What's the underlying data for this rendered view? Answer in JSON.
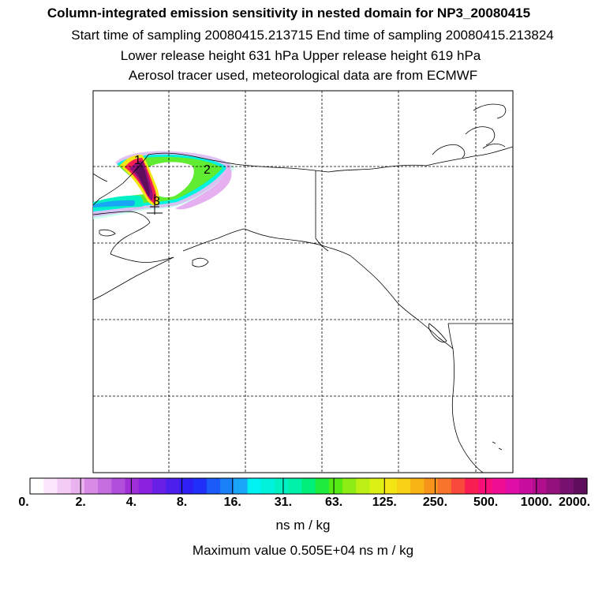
{
  "header": {
    "title": "Column-integrated emission sensitivity in nested domain for NP3_20080415",
    "line2": "Start time of sampling 20080415.213715     End time of sampling 20080415.213824",
    "line3": "Lower release height  631 hPa        Upper release height  619 hPa",
    "line4": "Aerosol tracer used, meteorological data are from ECMWF"
  },
  "map": {
    "trajectory_labels": [
      "1",
      "2",
      "3"
    ]
  },
  "colorbar": {
    "labels": [
      "0.",
      "2.",
      "4.",
      "8.",
      "16.",
      "31.",
      "63.",
      "125.",
      "250.",
      "500.",
      "1000.",
      "2000."
    ],
    "units": "ns m / kg",
    "colors": [
      "#ffffff",
      "#fbe6fb",
      "#f3ccf5",
      "#eab3f0",
      "#d78ae6",
      "#c56ee0",
      "#b24edc",
      "#9f2fd9",
      "#8a22e0",
      "#6a1fe6",
      "#4c1fed",
      "#2f1ff5",
      "#2030f8",
      "#1a5af8",
      "#1a80f8",
      "#1aa6f6",
      "#00f2f2",
      "#00f2dd",
      "#00f2c4",
      "#00f2aa",
      "#00ef7a",
      "#1eec3c",
      "#55ea14",
      "#8cec14",
      "#bcef14",
      "#dcf014",
      "#f4e614",
      "#f8d014",
      "#f8b414",
      "#f8941c",
      "#f8742c",
      "#f84a3c",
      "#f81e52",
      "#f80e78",
      "#f00e94",
      "#e00ea8",
      "#c80e9c",
      "#b00e8c",
      "#94107c",
      "#781070",
      "#5e0e5c"
    ]
  },
  "footer": {
    "maximum": "Maximum value  0.505E+04 ns m / kg"
  }
}
